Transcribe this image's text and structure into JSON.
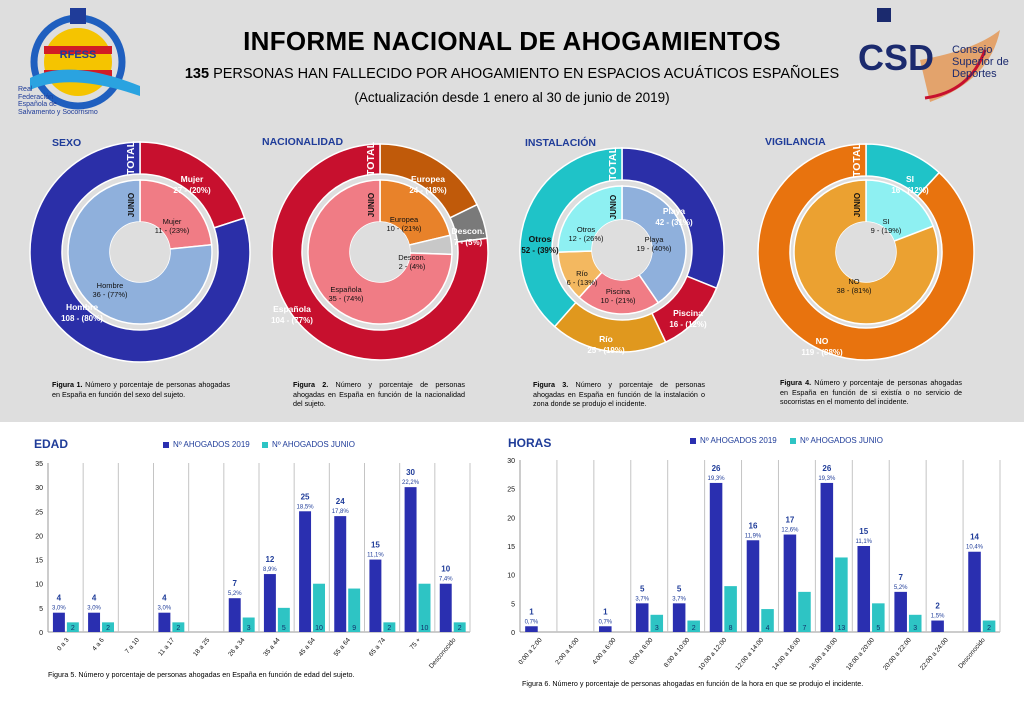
{
  "header": {
    "title": "INFORME NACIONAL DE AHOGAMIENTOS",
    "subtitle_number": "135",
    "subtitle_rest": " PERSONAS HAN FALLECIDO POR AHOGAMIENTO EN ESPACIOS ACUÁTICOS ESPAÑOLES",
    "update": "(Actualización desde 1 enero al 30 de junio de 2019)",
    "left_logo": {
      "acronym": "RFESS",
      "lines": [
        "Real",
        "Federación",
        "Española de",
        "Salvamento y Socorrismo"
      ]
    },
    "right_logo": {
      "acronym": "CSD",
      "lines": [
        "Consejo",
        "Superior de",
        "Deportes"
      ]
    }
  },
  "colors": {
    "page_bg": "#dedede",
    "heading": "#1f3c99",
    "bar_2019": "#2a2fb0",
    "bar_junio": "#2ec4c4"
  },
  "pie_charts": [
    {
      "section_label": "SEXO",
      "outer_label": "TOTAL",
      "inner_label": "JUNIO",
      "outer": [
        {
          "name": "Mujer",
          "value": 27,
          "pct": "27 - (20%)",
          "color": "#c7102e"
        },
        {
          "name": "Hombre",
          "value": 108,
          "pct": "108 - (80%)",
          "color": "#2b2fa8"
        }
      ],
      "inner": [
        {
          "name": "Mujer",
          "value": 11,
          "pct": "11 - (23%)",
          "color": "#f07c85"
        },
        {
          "name": "Hombre",
          "value": 36,
          "pct": "36 - (77%)",
          "color": "#8fb0dc"
        }
      ],
      "caption_bold": "Figura 1.",
      "caption": " Número y porcentaje de personas ahogadas en España en función del sexo del sujeto."
    },
    {
      "section_label": "NACIONALIDAD",
      "outer_label": "TOTAL",
      "inner_label": "JUNIO",
      "outer": [
        {
          "name": "Europea",
          "value": 24,
          "pct": "24 - (18%)",
          "color": "#c05a0a"
        },
        {
          "name": "Descon.",
          "value": 7,
          "pct": "7 - (5%)",
          "color": "#7a7a7a"
        },
        {
          "name": "Española",
          "value": 104,
          "pct": "104 - (77%)",
          "color": "#c7102e"
        }
      ],
      "inner": [
        {
          "name": "Europea",
          "value": 10,
          "pct": "10 - (21%)",
          "color": "#e8822a"
        },
        {
          "name": "Descon.",
          "value": 2,
          "pct": "2 - (4%)",
          "color": "#c8c8c8"
        },
        {
          "name": "Española",
          "value": 35,
          "pct": "35 - (74%)",
          "color": "#f07c85"
        }
      ],
      "caption_bold": "Figura 2.",
      "caption": " Número y porcentaje de personas ahogadas en España en función de la nacionalidad del sujeto."
    },
    {
      "section_label": "INSTALACIÓN",
      "outer_label": "TOTAL",
      "inner_label": "JUNIO",
      "outer": [
        {
          "name": "Playa",
          "value": 42,
          "pct": "42 - (31%)",
          "color": "#2b2fa8"
        },
        {
          "name": "Piscina",
          "value": 16,
          "pct": "16 - (12%)",
          "color": "#c7102e"
        },
        {
          "name": "Río",
          "value": 25,
          "pct": "25 - (19%)",
          "color": "#e0981e"
        },
        {
          "name": "Otros",
          "value": 52,
          "pct": "52 - (39%)",
          "color": "#1fc3c8"
        }
      ],
      "inner": [
        {
          "name": "Playa",
          "value": 19,
          "pct": "19 - (40%)",
          "color": "#8fb0dc"
        },
        {
          "name": "Piscina",
          "value": 10,
          "pct": "10 - (21%)",
          "color": "#f07c85"
        },
        {
          "name": "Río",
          "value": 6,
          "pct": "6 - (13%)",
          "color": "#f3b860"
        },
        {
          "name": "Otros",
          "value": 12,
          "pct": "12 - (26%)",
          "color": "#8ef0f2"
        }
      ],
      "caption_bold": "Figura 3.",
      "caption": " Número y porcentaje de personas ahogadas en España en función de la instalación o zona donde se produjo el incidente."
    },
    {
      "section_label": "VIGILANCIA",
      "outer_label": "TOTAL",
      "inner_label": "JUNIO",
      "outer": [
        {
          "name": "SI",
          "value": 16,
          "pct": "16 - (12%)",
          "color": "#1fc3c8"
        },
        {
          "name": "NO",
          "value": 119,
          "pct": "119 - (88%)",
          "color": "#e8730e"
        }
      ],
      "inner": [
        {
          "name": "SI",
          "value": 9,
          "pct": "9 - (19%)",
          "color": "#8ef0f2"
        },
        {
          "name": "NO",
          "value": 38,
          "pct": "38 - (81%)",
          "color": "#eba131"
        }
      ],
      "caption_bold": "Figura 4.",
      "caption": " Número y porcentaje de personas ahogadas en España en función de si existía o no servicio de socorristas en el momento del incidente."
    }
  ],
  "chart_data": [
    {
      "type": "bar",
      "title": "EDAD",
      "categories": [
        "0 a 3",
        "4 a 6",
        "7 a 10",
        "11 a 17",
        "18 a 25",
        "26 a 34",
        "35 a 44",
        "45 a 54",
        "55 a 64",
        "65 a 74",
        "75 +",
        "Desconocido"
      ],
      "series": [
        {
          "name": "Nº AHOGADOS 2019",
          "values": [
            4,
            4,
            0,
            4,
            0,
            7,
            12,
            25,
            24,
            15,
            30,
            10
          ],
          "pct_labels": [
            "3,0%",
            "3,0%",
            "",
            "3,0%",
            "",
            "5,2%",
            "8,9%",
            "18,5%",
            "17,8%",
            "11,1%",
            "22,2%",
            "7,4%"
          ]
        },
        {
          "name": "Nº AHOGADOS JUNIO",
          "values": [
            2,
            2,
            0,
            2,
            0,
            3,
            5,
            10,
            9,
            2,
            10,
            2
          ]
        }
      ],
      "ylim": [
        0,
        35
      ],
      "yticks": [
        "0",
        "5",
        "10",
        "15",
        "20",
        "25",
        "30",
        "35"
      ],
      "legend": "top",
      "caption": "Figura 5. Número y porcentaje de personas ahogadas en España en función de edad del sujeto."
    },
    {
      "type": "bar",
      "title": "HORAS",
      "categories": [
        "0:00 a 2:00",
        "2:00 a 4:00",
        "4:00 a 6:00",
        "6:00 a 8:00",
        "8:00 a 10:00",
        "10:00 a 12:00",
        "12:00 a 14:00",
        "14:00 a 16:00",
        "16:00 a 18:00",
        "18:00 a 20:00",
        "20:00 a 22:00",
        "22:00 a 24:00",
        "Desconocido"
      ],
      "series": [
        {
          "name": "Nº AHOGADOS 2019",
          "values": [
            1,
            0,
            1,
            5,
            5,
            26,
            16,
            17,
            26,
            15,
            7,
            2,
            14
          ],
          "pct_labels": [
            "0,7%",
            "",
            "0,7%",
            "3,7%",
            "3,7%",
            "19,3%",
            "11,9%",
            "12,6%",
            "19,3%",
            "11,1%",
            "5,2%",
            "1,5%",
            "10,4%"
          ]
        },
        {
          "name": "Nº AHOGADOS JUNIO",
          "values": [
            0,
            0,
            0,
            3,
            2,
            8,
            4,
            7,
            13,
            5,
            3,
            0,
            2
          ]
        }
      ],
      "ylim": [
        0,
        30
      ],
      "yticks": [
        "0",
        "5",
        "10",
        "15",
        "20",
        "25",
        "30"
      ],
      "legend": "top",
      "caption": "Figura 6. Número y porcentaje de personas ahogadas en función de la hora en que se produjo el incidente."
    }
  ]
}
